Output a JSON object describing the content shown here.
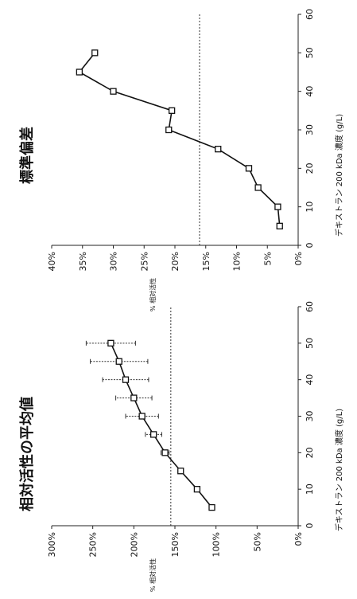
{
  "chart_data": [
    {
      "type": "line",
      "title": "相対活性の平均値",
      "xlabel": "デキストラン 200 kDa 濃度 (g/L)",
      "ylabel": "% 相対活性",
      "x_ticks": [
        0,
        10,
        20,
        30,
        40,
        50,
        60
      ],
      "y_ticks": [
        "0%",
        "50%",
        "100%",
        "150%",
        "200%",
        "250%",
        "300%"
      ],
      "xlim": [
        0,
        60
      ],
      "ylim": [
        0,
        300
      ],
      "reference_line": 155,
      "grid": false,
      "series": [
        {
          "x": [
            5,
            10,
            15,
            20,
            25,
            30,
            35,
            40,
            45,
            50
          ],
          "y": [
            105,
            123,
            143,
            162,
            176,
            190,
            200,
            210,
            218,
            228
          ],
          "error": [
            0,
            0,
            0,
            5,
            10,
            20,
            22,
            28,
            35,
            30
          ]
        }
      ]
    },
    {
      "type": "line",
      "title": "標準偏差",
      "xlabel": "デキストラン 200 kDa 濃度 (g/L)",
      "ylabel": "% 相対活性",
      "x_ticks": [
        0,
        10,
        20,
        30,
        40,
        50,
        60
      ],
      "y_ticks": [
        "0%",
        "5%",
        "10%",
        "15%",
        "20%",
        "25%",
        "30%",
        "35%",
        "40%"
      ],
      "xlim": [
        0,
        60
      ],
      "ylim": [
        0,
        40
      ],
      "reference_line": 16,
      "grid": false,
      "series": [
        {
          "x": [
            5,
            10,
            15,
            20,
            25,
            30,
            35,
            40,
            45,
            50
          ],
          "y": [
            3,
            3.3,
            6.5,
            8,
            13,
            21,
            20.5,
            30,
            35.5,
            33
          ]
        }
      ]
    }
  ]
}
